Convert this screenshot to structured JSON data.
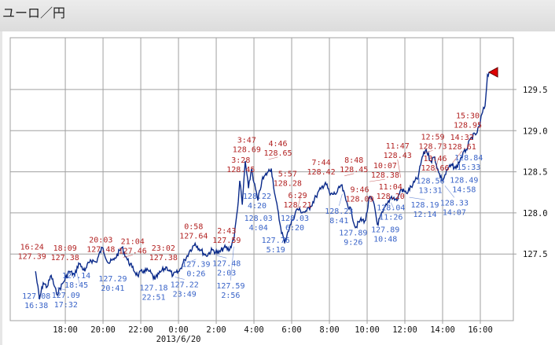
{
  "header": {
    "title": "ユーロ／円"
  },
  "chart_data": {
    "type": "line",
    "title": "ユーロ／円",
    "xlabel": "",
    "ylabel": "",
    "date_label": "2013/6/20",
    "x_units": "hours since 2013/6/19 0:00",
    "xlim": [
      15.08,
      41.75
    ],
    "ylim": [
      126.69,
      130.13
    ],
    "grid": true,
    "y_axis_side": "right",
    "x_ticks": [
      18,
      20,
      22,
      24,
      26,
      28,
      30,
      32,
      34,
      36,
      38,
      40
    ],
    "x_tick_labels": [
      "18:00",
      "20:00",
      "22:00",
      "0:00",
      "2:00",
      "4:00",
      "6:00",
      "8:00",
      "10:00",
      "12:00",
      "14:00",
      "16:00"
    ],
    "y_ticks": [
      127.5,
      128.0,
      128.5,
      129.0,
      129.5
    ],
    "y_tick_labels": [
      "127.5",
      "128.0",
      "128.5",
      "129.0",
      "129.5"
    ],
    "colors": {
      "line": "#0a2a8a",
      "high": "#b22222",
      "low": "#3a64c8",
      "grid": "#a0a0a0",
      "marker": "#e00000"
    },
    "series": [
      {
        "name": "EUR/JPY",
        "x": [
          16.42,
          16.63,
          16.83,
          17.04,
          17.25,
          17.54,
          17.88,
          18.21,
          18.5,
          18.71,
          19.04,
          19.33,
          19.63,
          19.96,
          20.29,
          20.58,
          21.0,
          21.29,
          21.54,
          21.83,
          22.17,
          22.46,
          22.75,
          23.08,
          23.38,
          23.71,
          24.04,
          24.33,
          24.63,
          24.88,
          25.17,
          25.46,
          25.79,
          26.13,
          26.42,
          26.71,
          26.96,
          27.13,
          27.25,
          27.38,
          27.54,
          27.71,
          27.88,
          28.0,
          28.21,
          28.42,
          28.71,
          28.92,
          29.13,
          29.42,
          29.63,
          29.79,
          30.04,
          30.29,
          30.58,
          30.79,
          31.0,
          31.29,
          31.54,
          31.79,
          32.04,
          32.38,
          32.63,
          32.88,
          33.17,
          33.38,
          33.63,
          33.92,
          34.13,
          34.38,
          34.54,
          34.83,
          35.04,
          35.29,
          35.58,
          35.79,
          36.08,
          36.42,
          36.71,
          36.92,
          37.13,
          37.38,
          37.58,
          37.79,
          38.0,
          38.29,
          38.5,
          38.71,
          39.0,
          39.25,
          39.54,
          39.79,
          39.96,
          40.08,
          40.25,
          40.38,
          40.46
        ],
        "y": [
          127.29,
          126.95,
          127.15,
          127.1,
          127.24,
          127.01,
          127.15,
          127.29,
          127.24,
          127.39,
          127.29,
          127.43,
          127.4,
          127.58,
          127.39,
          127.43,
          127.58,
          127.43,
          127.34,
          127.24,
          127.3,
          127.29,
          127.19,
          127.29,
          127.34,
          127.24,
          127.29,
          127.43,
          127.55,
          127.63,
          127.55,
          127.48,
          127.55,
          127.51,
          127.58,
          127.55,
          127.72,
          128.05,
          128.39,
          128.1,
          128.63,
          128.3,
          128.54,
          128.37,
          128.15,
          128.39,
          128.49,
          128.54,
          128.2,
          127.82,
          127.63,
          127.77,
          127.91,
          128.05,
          128.01,
          128.02,
          128.08,
          128.2,
          128.29,
          128.37,
          128.22,
          128.24,
          128.34,
          128.15,
          128.01,
          127.82,
          127.91,
          127.91,
          128.2,
          128.1,
          127.86,
          128.01,
          128.1,
          128.2,
          128.15,
          128.29,
          128.24,
          128.34,
          128.44,
          128.68,
          128.77,
          128.63,
          128.68,
          128.49,
          128.39,
          128.54,
          128.58,
          128.54,
          128.68,
          128.77,
          128.92,
          128.96,
          129.06,
          129.2,
          129.3,
          129.68,
          129.71
        ]
      }
    ],
    "annotations": [
      {
        "kind": "high",
        "time": "16:24",
        "price": "127.39",
        "x": 16.4,
        "y": 127.39
      },
      {
        "kind": "high",
        "time": "18:09",
        "price": "127.38",
        "x": 18.15,
        "y": 127.38
      },
      {
        "kind": "high",
        "time": "20:03",
        "price": "127.48",
        "x": 20.05,
        "y": 127.48
      },
      {
        "kind": "high",
        "time": "21:04",
        "price": "127.46",
        "x": 21.07,
        "y": 127.46
      },
      {
        "kind": "high",
        "time": "23:02",
        "price": "127.38",
        "x": 23.03,
        "y": 127.38
      },
      {
        "kind": "high",
        "time": "0:58",
        "price": "127.64",
        "x": 24.97,
        "y": 127.64
      },
      {
        "kind": "high",
        "time": "2:43",
        "price": "127.59",
        "x": 26.72,
        "y": 127.59
      },
      {
        "kind": "high",
        "time": "3:28",
        "price": "128.45",
        "x": 27.47,
        "y": 128.45
      },
      {
        "kind": "high",
        "time": "3:47",
        "price": "128.69",
        "x": 27.78,
        "y": 128.69
      },
      {
        "kind": "high",
        "time": "4:46",
        "price": "128.65",
        "x": 28.77,
        "y": 128.65
      },
      {
        "kind": "high",
        "time": "5:57",
        "price": "128.28",
        "x": 29.95,
        "y": 128.28
      },
      {
        "kind": "high",
        "time": "6:29",
        "price": "128.21",
        "x": 30.48,
        "y": 128.21
      },
      {
        "kind": "high",
        "time": "7:44",
        "price": "128.42",
        "x": 31.73,
        "y": 128.42
      },
      {
        "kind": "high",
        "time": "8:48",
        "price": "128.45",
        "x": 32.8,
        "y": 128.45
      },
      {
        "kind": "high",
        "time": "9:46",
        "price": "128.09",
        "x": 33.77,
        "y": 128.09
      },
      {
        "kind": "high",
        "time": "10:07",
        "price": "128.38",
        "x": 34.12,
        "y": 128.38
      },
      {
        "kind": "high",
        "time": "11:04",
        "price": "128.20",
        "x": 35.07,
        "y": 128.2
      },
      {
        "kind": "high",
        "time": "11:47",
        "price": "128.43",
        "x": 35.78,
        "y": 128.43
      },
      {
        "kind": "high",
        "time": "12:59",
        "price": "128.73",
        "x": 36.98,
        "y": 128.73
      },
      {
        "kind": "high",
        "time": "13:46",
        "price": "128.66",
        "x": 37.77,
        "y": 128.66
      },
      {
        "kind": "high",
        "time": "14:32",
        "price": "128.61",
        "x": 38.53,
        "y": 128.61
      },
      {
        "kind": "high",
        "time": "15:30",
        "price": "128.95",
        "x": 39.5,
        "y": 128.95
      },
      {
        "kind": "low",
        "time": "16:38",
        "price": "127.08",
        "x": 16.63,
        "y": 127.08
      },
      {
        "kind": "low",
        "time": "17:32",
        "price": "127.09",
        "x": 17.53,
        "y": 127.09
      },
      {
        "kind": "low",
        "time": "18:45",
        "price": "127.14",
        "x": 18.75,
        "y": 127.14
      },
      {
        "kind": "low",
        "time": "20:41",
        "price": "127.29",
        "x": 20.68,
        "y": 127.29
      },
      {
        "kind": "low",
        "time": "22:51",
        "price": "127.18",
        "x": 22.85,
        "y": 127.18
      },
      {
        "kind": "low",
        "time": "23:49",
        "price": "127.22",
        "x": 23.82,
        "y": 127.22
      },
      {
        "kind": "low",
        "time": "0:26",
        "price": "127.39",
        "x": 24.43,
        "y": 127.39
      },
      {
        "kind": "low",
        "time": "2:03",
        "price": "127.48",
        "x": 26.05,
        "y": 127.48
      },
      {
        "kind": "low",
        "time": "2:56",
        "price": "127.59",
        "x": 26.93,
        "y": 127.59
      },
      {
        "kind": "low",
        "time": "4:04",
        "price": "128.03",
        "x": 28.07,
        "y": 128.03
      },
      {
        "kind": "low",
        "time": "4:20",
        "price": "128.22",
        "x": 28.33,
        "y": 128.22
      },
      {
        "kind": "low",
        "time": "5:19",
        "price": "127.76",
        "x": 29.32,
        "y": 127.76
      },
      {
        "kind": "low",
        "time": "6:20",
        "price": "128.03",
        "x": 30.33,
        "y": 128.03
      },
      {
        "kind": "low",
        "time": "8:41",
        "price": "128.23",
        "x": 32.68,
        "y": 128.23
      },
      {
        "kind": "low",
        "time": "9:26",
        "price": "127.89",
        "x": 33.43,
        "y": 127.89
      },
      {
        "kind": "low",
        "time": "10:48",
        "price": "127.89",
        "x": 34.8,
        "y": 127.89
      },
      {
        "kind": "low",
        "time": "11:26",
        "price": "128.04",
        "x": 35.43,
        "y": 128.04
      },
      {
        "kind": "low",
        "time": "12:14",
        "price": "128.19",
        "x": 36.23,
        "y": 128.19
      },
      {
        "kind": "low",
        "time": "13:31",
        "price": "128.56",
        "x": 37.52,
        "y": 128.56
      },
      {
        "kind": "low",
        "time": "14:07",
        "price": "128.33",
        "x": 38.12,
        "y": 128.33
      },
      {
        "kind": "low",
        "time": "14:58",
        "price": "128.49",
        "x": 38.97,
        "y": 128.49
      },
      {
        "kind": "low",
        "time": "15:33",
        "price": "128.84",
        "x": 39.55,
        "y": 128.84
      }
    ]
  }
}
